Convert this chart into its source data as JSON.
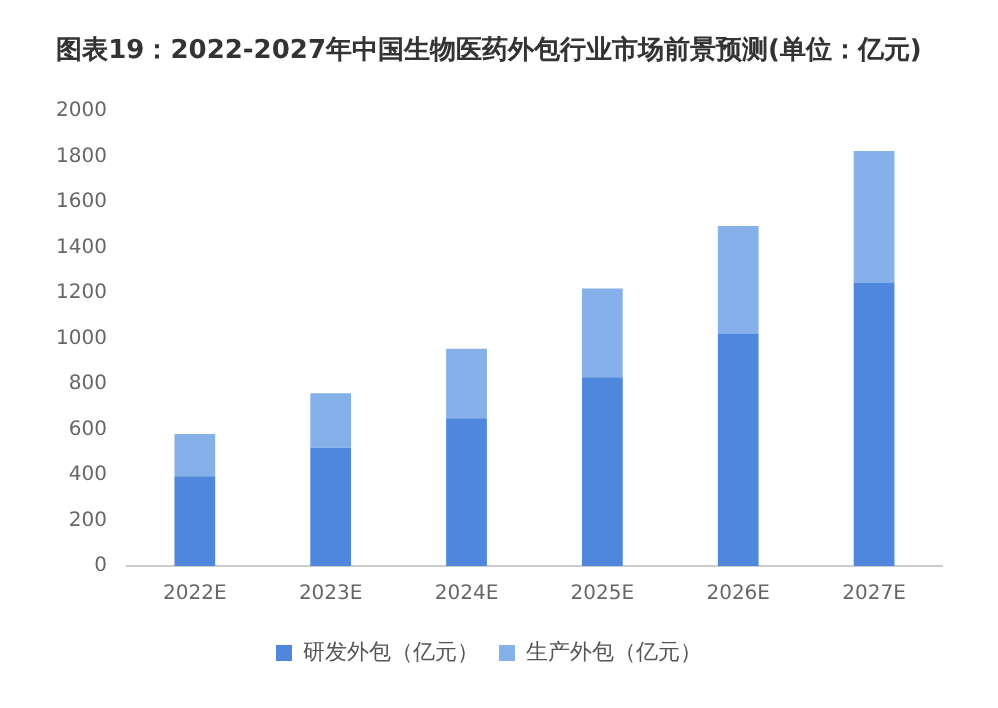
{
  "chart_data": {
    "type": "bar",
    "title": "图表19：2022-2027年中国生物医药外包行业市场前景预测(单位：亿元)",
    "categories": [
      "2022E",
      "2023E",
      "2024E",
      "2025E",
      "2026E",
      "2027E"
    ],
    "stacked": true,
    "series": [
      {
        "name": "研发外包（亿元）",
        "color": "#4f87dc",
        "values": [
          395,
          520,
          650,
          830,
          1020,
          1245
        ]
      },
      {
        "name": "生产外包（亿元）",
        "color": "#86b0ea",
        "values": [
          185,
          240,
          305,
          390,
          475,
          580
        ]
      }
    ],
    "ylim": [
      0,
      2000
    ],
    "yticks": [
      0,
      200,
      400,
      600,
      800,
      1000,
      1200,
      1400,
      1600,
      1800,
      2000
    ],
    "grid": false,
    "legend": "bottom"
  }
}
